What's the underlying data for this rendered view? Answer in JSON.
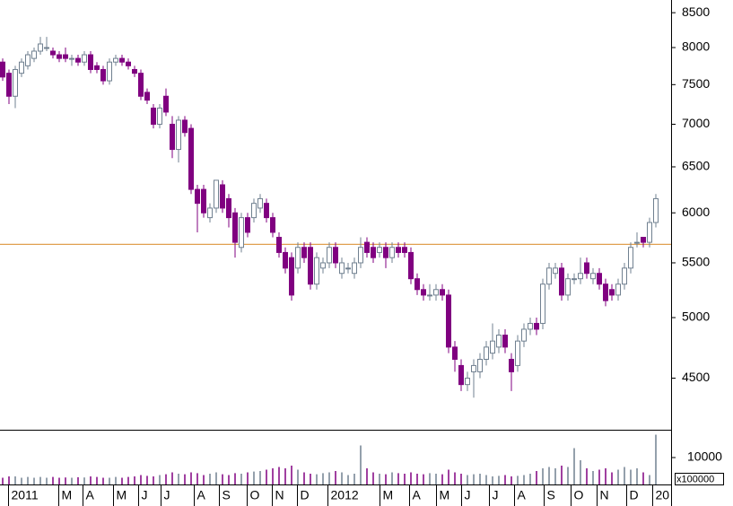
{
  "chart_data": {
    "type": "candlestick",
    "ylog": true,
    "ylim": [
      4120,
      8690
    ],
    "yticks": [
      4500,
      5000,
      5500,
      6000,
      6500,
      7000,
      7500,
      8000,
      8500
    ],
    "y2lim": [
      0,
      20000
    ],
    "y2ticks": [
      10000
    ],
    "y2unit": "x100000",
    "hline": {
      "value": 5680,
      "color": "#e0a050"
    },
    "up_color": "#ffffff",
    "up_edge": "#708090",
    "down_color": "#800080",
    "xticks": [
      {
        "value": 0.85,
        "label": "2011"
      },
      {
        "value": 8.8,
        "label": "M"
      },
      {
        "value": 12.7,
        "label": "A"
      },
      {
        "value": 17.5,
        "label": "M"
      },
      {
        "value": 21.5,
        "label": "J"
      },
      {
        "value": 25.2,
        "label": "J"
      },
      {
        "value": 30.4,
        "label": "A"
      },
      {
        "value": 34.4,
        "label": "S"
      },
      {
        "value": 38.9,
        "label": "O"
      },
      {
        "value": 42.9,
        "label": "N"
      },
      {
        "value": 46.8,
        "label": "D"
      },
      {
        "value": 51.7,
        "label": "2012"
      },
      {
        "value": 60,
        "label": "M"
      },
      {
        "value": 64.7,
        "label": "A"
      },
      {
        "value": 69,
        "label": "M"
      },
      {
        "value": 73,
        "label": "J"
      },
      {
        "value": 77.4,
        "label": "J"
      },
      {
        "value": 81.4,
        "label": "A"
      },
      {
        "value": 86.1,
        "label": "S"
      },
      {
        "value": 90.4,
        "label": "O"
      },
      {
        "value": 94.6,
        "label": "N"
      },
      {
        "value": 99.3,
        "label": "D"
      },
      {
        "value": 103.4,
        "label": "20"
      }
    ],
    "open": [
      7800,
      7650,
      7350,
      7650,
      7750,
      7850,
      7950,
      8000,
      7950,
      7900,
      7900,
      7850,
      7850,
      7800,
      7900,
      7750,
      7700,
      7550,
      7800,
      7850,
      7800,
      7700,
      7650,
      7400,
      7200,
      7000,
      7350,
      7000,
      6700,
      7050,
      6950,
      6250,
      6250,
      5950,
      6050,
      6300,
      6150,
      6000,
      5650,
      5950,
      5950,
      6050,
      6100,
      5950,
      5750,
      5600,
      5550,
      5450,
      5650,
      5650,
      5300,
      5450,
      5500,
      5650,
      5400,
      5450,
      5400,
      5500,
      5700,
      5650,
      5600,
      5650,
      5550,
      5650,
      5650,
      5600,
      5350,
      5250,
      5200,
      5200,
      5250,
      5200,
      4750,
      4600,
      4450,
      4550,
      4550,
      4650,
      4700,
      4750,
      4850,
      4650,
      4600,
      4800,
      4900,
      4950,
      4950,
      5300,
      5400,
      5450,
      5200,
      5350,
      5350,
      5500,
      5350,
      5400,
      5300,
      5250,
      5200,
      5300,
      5450,
      5700,
      5750,
      5700,
      5900
    ],
    "high": [
      7850,
      7700,
      7750,
      7850,
      7950,
      8000,
      8150,
      8150,
      8000,
      7950,
      8000,
      7900,
      7900,
      7950,
      7950,
      7800,
      7750,
      7850,
      7900,
      7900,
      7850,
      7750,
      7700,
      7450,
      7250,
      7250,
      7450,
      7100,
      7100,
      7100,
      7000,
      6300,
      6300,
      6100,
      6350,
      6350,
      6200,
      6050,
      6000,
      6000,
      6150,
      6200,
      6150,
      6000,
      5800,
      5650,
      5600,
      5700,
      5700,
      5700,
      5600,
      5550,
      5700,
      5700,
      5550,
      5500,
      5550,
      5750,
      5750,
      5700,
      5700,
      5700,
      5700,
      5700,
      5700,
      5650,
      5400,
      5300,
      5300,
      5300,
      5300,
      5250,
      4800,
      4650,
      4550,
      4650,
      4700,
      4800,
      4950,
      4900,
      4900,
      4700,
      4850,
      4950,
      5000,
      5000,
      5350,
      5500,
      5500,
      5500,
      5400,
      5400,
      5550,
      5550,
      5450,
      5450,
      5350,
      5300,
      5350,
      5500,
      5700,
      5800,
      5750,
      5950,
      6200
    ],
    "low": [
      7550,
      7250,
      7200,
      7600,
      7700,
      7800,
      7900,
      7950,
      7850,
      7800,
      7800,
      7750,
      7750,
      7750,
      7650,
      7650,
      7500,
      7500,
      7750,
      7750,
      7700,
      7600,
      7300,
      7250,
      6950,
      6950,
      7100,
      6600,
      6550,
      6850,
      6200,
      5800,
      5950,
      5900,
      6000,
      6000,
      5850,
      5550,
      5600,
      5750,
      5900,
      6000,
      5900,
      5750,
      5550,
      5400,
      5150,
      5400,
      5500,
      5250,
      5250,
      5400,
      5450,
      5450,
      5350,
      5400,
      5350,
      5450,
      5550,
      5500,
      5550,
      5450,
      5500,
      5550,
      5550,
      5300,
      5200,
      5150,
      5150,
      5150,
      5150,
      4700,
      4550,
      4400,
      4400,
      4350,
      4500,
      4600,
      4650,
      4700,
      4700,
      4400,
      4550,
      4750,
      4850,
      4850,
      4900,
      5250,
      5350,
      5150,
      5150,
      5300,
      5300,
      5350,
      5300,
      5250,
      5100,
      5150,
      5150,
      5250,
      5400,
      5650,
      5650,
      5650,
      5850
    ],
    "close": [
      7600,
      7350,
      7700,
      7800,
      7900,
      7950,
      8050,
      8000,
      7900,
      7850,
      7850,
      7850,
      7800,
      7900,
      7700,
      7700,
      7550,
      7800,
      7850,
      7800,
      7750,
      7650,
      7350,
      7300,
      7000,
      7200,
      7150,
      6700,
      7050,
      6900,
      6250,
      6100,
      6000,
      6050,
      6350,
      6050,
      5950,
      5700,
      5950,
      5800,
      6100,
      6150,
      5950,
      5800,
      5600,
      5450,
      5200,
      5650,
      5550,
      5300,
      5550,
      5500,
      5650,
      5500,
      5500,
      5450,
      5500,
      5650,
      5600,
      5550,
      5650,
      5550,
      5650,
      5600,
      5600,
      5350,
      5250,
      5200,
      5200,
      5250,
      5200,
      4750,
      4650,
      4450,
      4500,
      4600,
      4650,
      4750,
      4800,
      4850,
      4750,
      4550,
      4800,
      4900,
      4950,
      4900,
      5300,
      5450,
      5450,
      5200,
      5350,
      5350,
      5400,
      5400,
      5400,
      5300,
      5150,
      5200,
      5300,
      5450,
      5650,
      5700,
      5700,
      5900,
      6150
    ],
    "volume": [
      2500,
      3000,
      3000,
      2500,
      2800,
      2500,
      2800,
      2500,
      2800,
      2500,
      2600,
      2500,
      2700,
      2600,
      3000,
      2800,
      2500,
      2500,
      2800,
      2500,
      2800,
      3000,
      3500,
      3200,
      3000,
      3500,
      3800,
      4500,
      4000,
      3800,
      4500,
      4200,
      3500,
      4000,
      4500,
      3800,
      3500,
      4200,
      4000,
      4500,
      4800,
      5000,
      5500,
      6000,
      6500,
      6000,
      7000,
      5500,
      4500,
      4000,
      3800,
      4200,
      4500,
      5000,
      4500,
      3500,
      4000,
      14500,
      6000,
      4500,
      4000,
      3800,
      4500,
      4200,
      4000,
      4500,
      4000,
      3800,
      4200,
      4000,
      3800,
      5500,
      4500,
      4000,
      3500,
      3800,
      4000,
      3500,
      3000,
      3200,
      3500,
      3000,
      3200,
      3500,
      4000,
      5000,
      6000,
      6500,
      6000,
      7000,
      6500,
      13500,
      9000,
      6000,
      5000,
      5500,
      6000,
      4500,
      5500,
      6500,
      5500,
      6000,
      4500,
      3500,
      18500
    ]
  }
}
